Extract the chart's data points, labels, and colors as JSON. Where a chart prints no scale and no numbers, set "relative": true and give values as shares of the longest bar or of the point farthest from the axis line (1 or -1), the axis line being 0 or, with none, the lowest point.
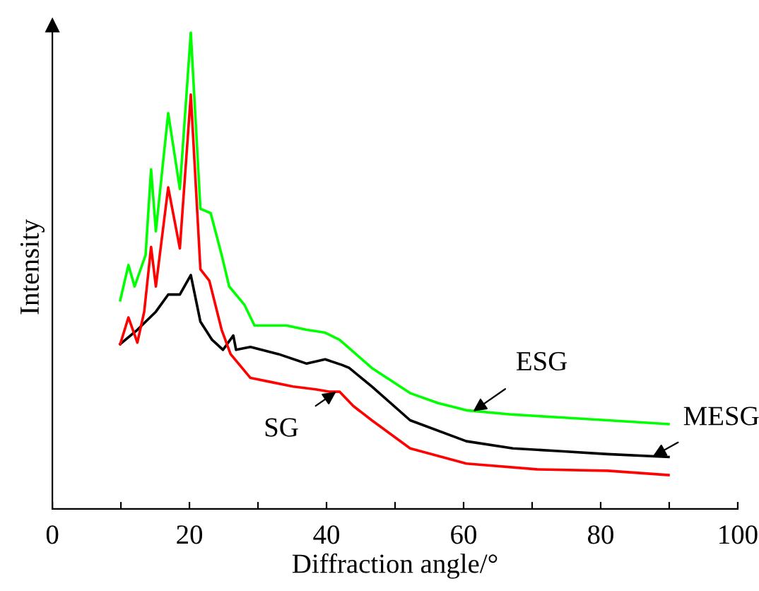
{
  "chart_data": {
    "type": "line",
    "relative": true,
    "xlabel": "Diffraction angle/°",
    "ylabel": "Intensity",
    "xlim": [
      0,
      100
    ],
    "xticks": [
      0,
      {
        "value": 10,
        "label": null
      },
      20,
      {
        "value": 30,
        "label": null
      },
      40,
      {
        "value": 50,
        "label": null
      },
      60,
      {
        "value": 70,
        "label": null
      },
      80,
      {
        "value": 90,
        "label": null
      },
      100
    ],
    "tick_labels": "x",
    "grid": false,
    "legend": false,
    "marker": "none",
    "line_style": "solid",
    "series": [
      {
        "color": "#00ff00",
        "x": [
          9.9,
          11.1,
          12.0,
          13.6,
          14.4,
          15.1,
          16.9,
          18.6,
          20.2,
          21.6,
          23.1,
          24.7,
          25.8,
          28.0,
          29.5,
          32.2,
          34.2,
          37.1,
          39.8,
          41.9,
          46.6,
          52.2,
          56.3,
          60.4,
          67.2,
          74.2,
          81.0,
          89.9
        ],
        "values": [
          0.438,
          0.512,
          0.467,
          0.533,
          0.713,
          0.583,
          0.831,
          0.672,
          1.0,
          0.63,
          0.621,
          0.533,
          0.467,
          0.429,
          0.385,
          0.385,
          0.385,
          0.376,
          0.37,
          0.355,
          0.296,
          0.243,
          0.222,
          0.207,
          0.198,
          0.192,
          0.186,
          0.178
        ]
      },
      {
        "color": "#000000",
        "x": [
          9.9,
          12.4,
          15.1,
          16.9,
          18.6,
          20.2,
          21.6,
          23.3,
          24.9,
          26.4,
          26.8,
          28.9,
          33.0,
          37.1,
          39.8,
          42.3,
          43.3,
          46.6,
          52.2,
          60.4,
          67.2,
          74.2,
          81.0,
          89.9
        ],
        "values": [
          0.346,
          0.376,
          0.414,
          0.45,
          0.45,
          0.491,
          0.393,
          0.355,
          0.334,
          0.364,
          0.334,
          0.34,
          0.325,
          0.305,
          0.314,
          0.302,
          0.296,
          0.257,
          0.186,
          0.142,
          0.127,
          0.121,
          0.115,
          0.109
        ]
      },
      {
        "color": "#ff0000",
        "x": [
          9.9,
          11.1,
          12.4,
          13.4,
          14.4,
          15.1,
          16.9,
          18.6,
          20.2,
          21.6,
          22.9,
          24.7,
          26.0,
          28.9,
          32.0,
          35.1,
          38.4,
          40.4,
          41.9,
          43.9,
          46.6,
          52.2,
          60.4,
          70.7,
          81.0,
          89.9
        ],
        "values": [
          0.346,
          0.402,
          0.349,
          0.414,
          0.55,
          0.467,
          0.675,
          0.547,
          0.87,
          0.503,
          0.479,
          0.376,
          0.325,
          0.275,
          0.266,
          0.257,
          0.251,
          0.246,
          0.246,
          0.216,
          0.186,
          0.127,
          0.095,
          0.083,
          0.08,
          0.071
        ]
      }
    ],
    "annotations": [
      {
        "text": "ESG",
        "x": 61.4,
        "y": 0.205
      },
      {
        "text": "MESG",
        "x": 87.6,
        "y": 0.11
      },
      {
        "text": "SG",
        "x": 41.4,
        "y": 0.246
      }
    ]
  }
}
